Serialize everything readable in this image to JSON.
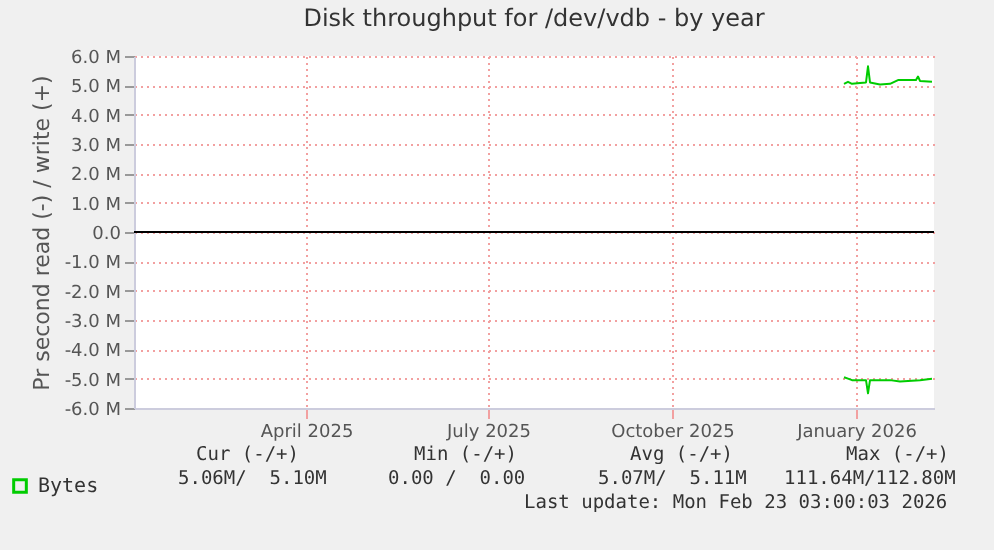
{
  "chart_data": {
    "type": "line",
    "title": "Disk throughput for /dev/vdb - by year",
    "ylabel": "Pr second read (-) / write (+)",
    "xlim": [
      "2025-01-19",
      "2026-02-23"
    ],
    "xticks": [
      {
        "value": "2025-04-15",
        "label": "April 2025"
      },
      {
        "value": "2025-07-15",
        "label": "July 2025"
      },
      {
        "value": "2025-10-15",
        "label": "October 2025"
      },
      {
        "value": "2026-01-15",
        "label": "January 2026"
      }
    ],
    "ylim": [
      -6,
      6
    ],
    "yticks": [
      {
        "value": 6,
        "label": "6.0 M"
      },
      {
        "value": 5,
        "label": "5.0 M"
      },
      {
        "value": 4,
        "label": "4.0 M"
      },
      {
        "value": 3,
        "label": "3.0 M"
      },
      {
        "value": 2,
        "label": "2.0 M"
      },
      {
        "value": 1,
        "label": "1.0 M"
      },
      {
        "value": 0,
        "label": "0.0"
      },
      {
        "value": -1,
        "label": "-1.0 M"
      },
      {
        "value": -2,
        "label": "-2.0 M"
      },
      {
        "value": -3,
        "label": "-3.0 M"
      },
      {
        "value": -4,
        "label": "-4.0 M"
      },
      {
        "value": -5,
        "label": "-5.0 M"
      },
      {
        "value": -6,
        "label": "-6.0 M"
      }
    ],
    "grid": true,
    "legend": "bottom left",
    "line_style": "solid",
    "ref_lines": [
      {
        "axis": "y",
        "value": 0,
        "color": "#000000"
      }
    ],
    "series": [
      {
        "name": "Bytes",
        "color": "#00cc00",
        "x": [
          "2026-01-09",
          "2026-01-11",
          "2026-01-13",
          "2026-01-17",
          "2026-01-20",
          "2026-01-21",
          "2026-01-22",
          "2026-01-27",
          "2026-02-01",
          "2026-02-05",
          "2026-02-14",
          "2026-02-15",
          "2026-02-16",
          "2026-02-22"
        ],
        "values": [
          5.05,
          5.12,
          5.05,
          5.08,
          5.1,
          5.65,
          5.1,
          5.03,
          5.05,
          5.18,
          5.18,
          5.3,
          5.15,
          5.12
        ]
      },
      {
        "color": "#00cc00",
        "x": [
          "2026-01-09",
          "2026-01-11",
          "2026-01-13",
          "2026-01-20",
          "2026-01-21",
          "2026-01-22",
          "2026-02-01",
          "2026-02-06",
          "2026-02-16",
          "2026-02-22"
        ],
        "values": [
          -4.95,
          -5.0,
          -5.05,
          -5.05,
          -5.5,
          -5.05,
          -5.05,
          -5.1,
          -5.05,
          -5.0
        ]
      }
    ],
    "annotations": [
      "Cur (-/+)",
      "Min (-/+)",
      "Avg (-/+)",
      "Max (-/+)",
      "5.06M/  5.10M",
      "0.00 /  0.00",
      "5.07M/  5.11M",
      "111.64M/112.80M",
      "Last update: Mon Feb 23 03:00:03 2026"
    ]
  }
}
